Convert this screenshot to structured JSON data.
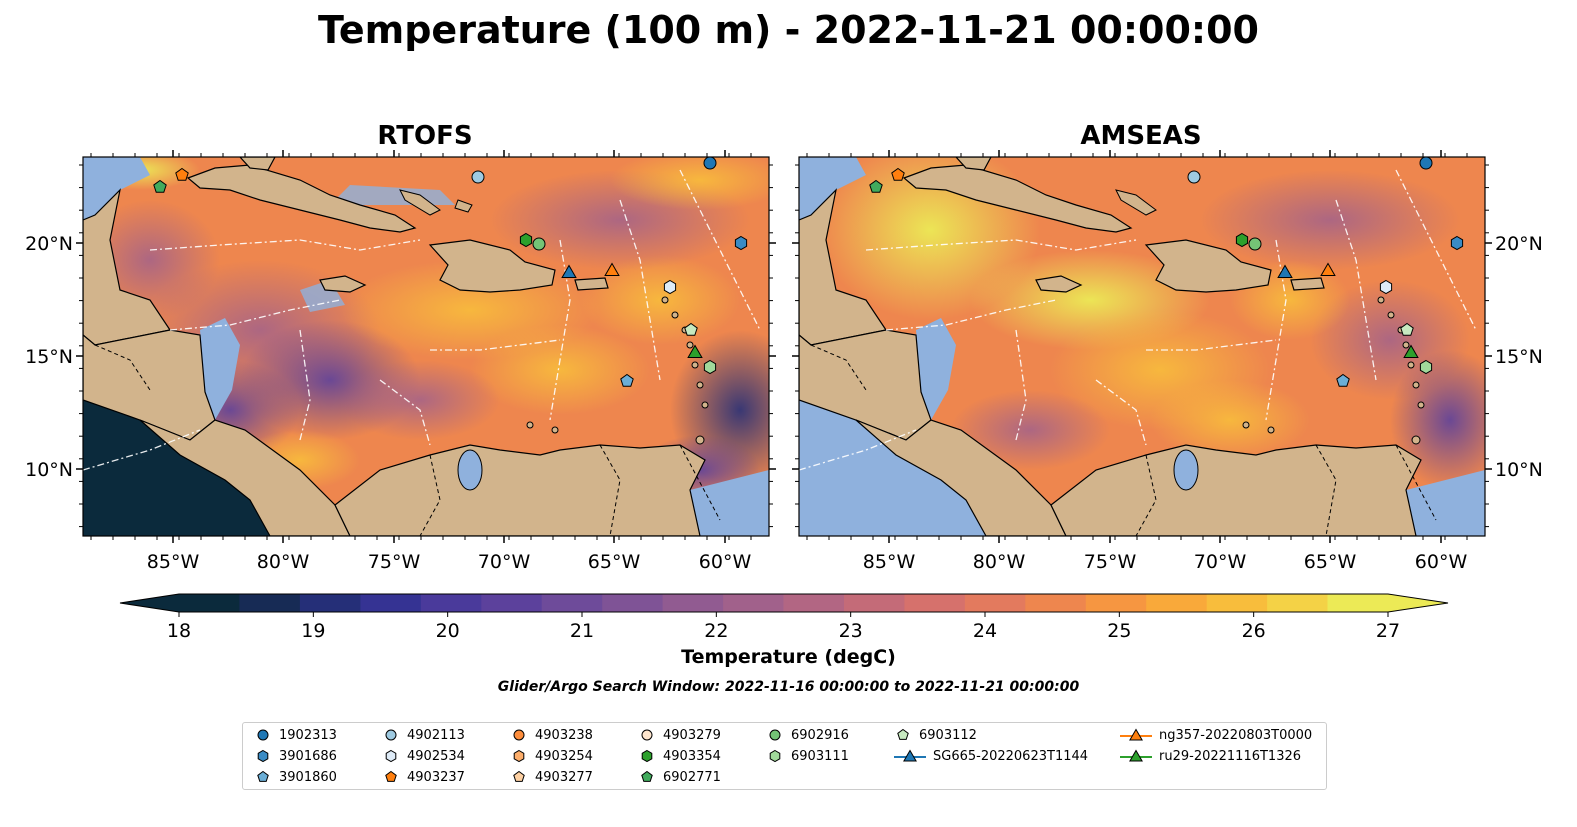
{
  "title": "Temperature (100 m) - 2022-11-21 00:00:00",
  "panels": [
    {
      "title": "RTOFS"
    },
    {
      "title": "AMSEAS"
    }
  ],
  "axes": {
    "lon_ticks": [
      "85°W",
      "80°W",
      "75°W",
      "70°W",
      "65°W",
      "60°W"
    ],
    "lat_ticks": [
      "20°N",
      "15°N",
      "10°N"
    ]
  },
  "colorbar": {
    "label": "Temperature (degC)",
    "ticks": [
      "18",
      "19",
      "20",
      "21",
      "22",
      "23",
      "24",
      "25",
      "26",
      "27"
    ],
    "range": [
      18,
      27
    ],
    "extend": "both",
    "colors": [
      "#0b2a3c",
      "#172b55",
      "#252f78",
      "#353393",
      "#4a3a9b",
      "#5c419c",
      "#6e4b9a",
      "#7f5396",
      "#915b91",
      "#a1618b",
      "#b26683",
      "#c46b78",
      "#d6716c",
      "#e37a5e",
      "#ee864e",
      "#f69641",
      "#f9a93a",
      "#f8bd3c",
      "#f4d246",
      "#ecea56"
    ]
  },
  "search_window": "Glider/Argo Search Window: 2022-11-16 00:00:00 to 2022-11-21 00:00:00",
  "legend": {
    "items": [
      {
        "label": "1902313",
        "marker": "circle",
        "color": "#1f77b4"
      },
      {
        "label": "3901686",
        "marker": "hexagon",
        "color": "#3a8bc4"
      },
      {
        "label": "3901860",
        "marker": "pentagon",
        "color": "#6baed6"
      },
      {
        "label": "4902113",
        "marker": "circle",
        "color": "#9ecae1"
      },
      {
        "label": "4902534",
        "marker": "hexagon",
        "color": "#deebf7"
      },
      {
        "label": "4903237",
        "marker": "pentagon",
        "color": "#ff7f0e"
      },
      {
        "label": "4903238",
        "marker": "circle",
        "color": "#fd8d3c"
      },
      {
        "label": "4903254",
        "marker": "hexagon",
        "color": "#fdae6b"
      },
      {
        "label": "4903277",
        "marker": "pentagon",
        "color": "#fdd0a2"
      },
      {
        "label": "4903279",
        "marker": "circle",
        "color": "#fee6ce"
      },
      {
        "label": "4903354",
        "marker": "hexagon",
        "color": "#2ca02c"
      },
      {
        "label": "6902771",
        "marker": "pentagon",
        "color": "#41ab5d"
      },
      {
        "label": "6902916",
        "marker": "circle",
        "color": "#74c476"
      },
      {
        "label": "6903111",
        "marker": "hexagon",
        "color": "#a1d99b"
      },
      {
        "label": "6903112",
        "marker": "pentagon",
        "color": "#c7e9c0"
      },
      {
        "label": "SG665-20220623T1144",
        "marker": "triangle-line",
        "color": "#1f77b4"
      },
      {
        "label": "ng357-20220803T0000",
        "marker": "triangle-line",
        "color": "#ff7f0e"
      },
      {
        "label": "ru29-20221116T1326",
        "marker": "triangle-line",
        "color": "#2ca02c"
      }
    ]
  }
}
